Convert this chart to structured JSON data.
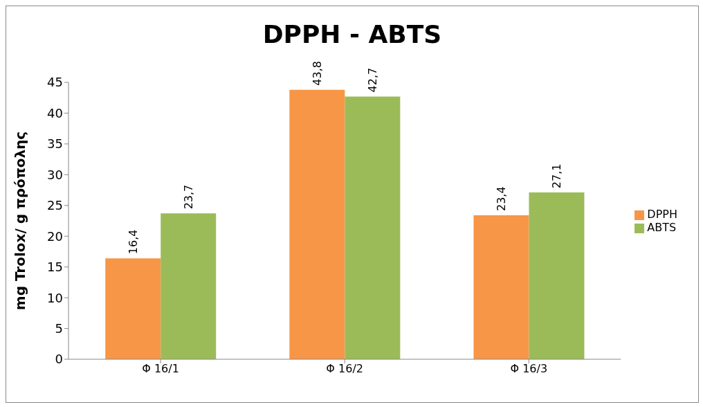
{
  "chart_data": {
    "type": "bar",
    "title": "DPPH - ABTS",
    "ylabel": "mg Trolox/ g πρόπολης",
    "categories": [
      "Φ 16/1",
      "Φ 16/2",
      "Φ 16/3"
    ],
    "series": [
      {
        "name": "DPPH",
        "color": "#f79646",
        "values": [
          16.4,
          43.8,
          23.4
        ],
        "value_labels": [
          "16,4",
          "43,8",
          "23,4"
        ]
      },
      {
        "name": "ABTS",
        "color": "#9bbb59",
        "values": [
          23.7,
          42.7,
          27.1
        ],
        "value_labels": [
          "23,7",
          "42,7",
          "27,1"
        ]
      }
    ],
    "ylim": [
      0,
      45
    ],
    "yticks": [
      0,
      5,
      10,
      15,
      20,
      25,
      30,
      35,
      40,
      45
    ],
    "legend": "right"
  }
}
